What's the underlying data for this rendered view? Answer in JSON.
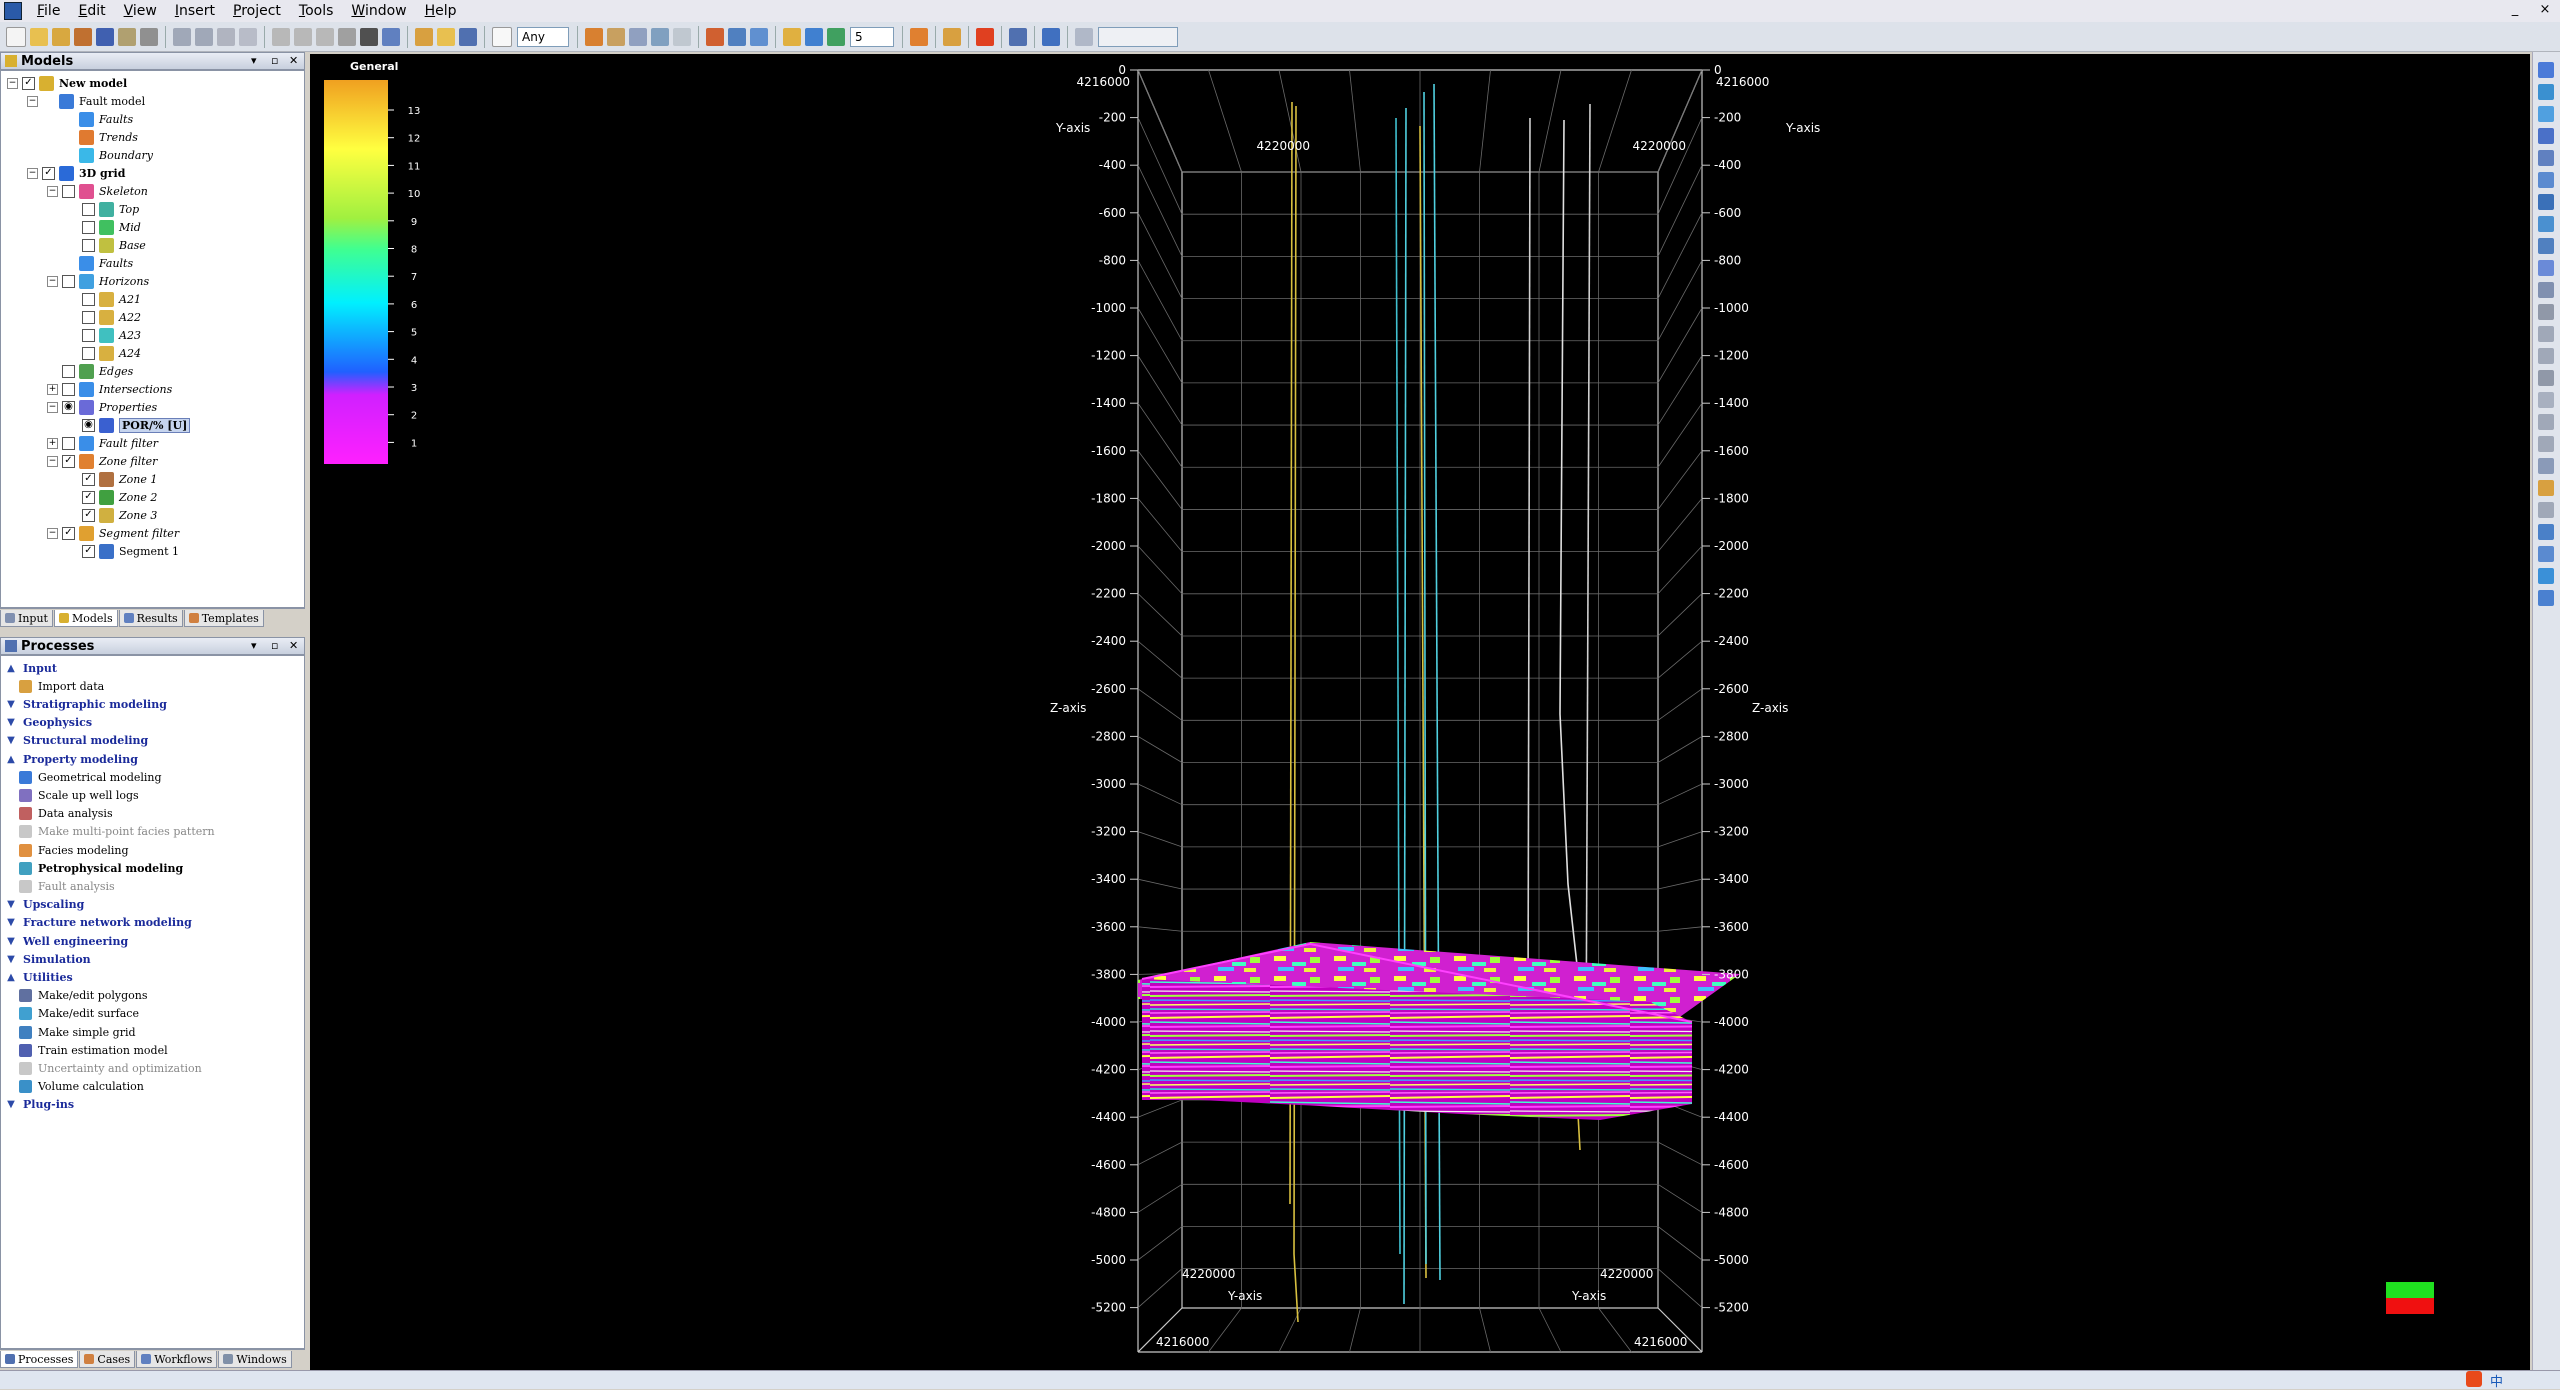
{
  "menu": [
    "File",
    "Edit",
    "View",
    "Insert",
    "Project",
    "Tools",
    "Window",
    "Help"
  ],
  "window_controls": [
    "_",
    "×"
  ],
  "toolbar": {
    "domain_select": "Any",
    "zoom_value": "5"
  },
  "models_panel": {
    "title": "Models",
    "tree": [
      {
        "label": "New model",
        "depth": 0,
        "exp": "−",
        "chk": "✓",
        "icon": "#d8b030",
        "style": "bold"
      },
      {
        "label": "Fault model",
        "depth": 1,
        "exp": "−",
        "chk": "",
        "icon": "#3a7ad8",
        "style": "plain"
      },
      {
        "label": "Faults",
        "depth": 2,
        "exp": "",
        "chk": "",
        "icon": "#3a8ee8",
        "style": "italic"
      },
      {
        "label": "Trends",
        "depth": 2,
        "exp": "",
        "chk": "",
        "icon": "#e07a30",
        "style": "italic"
      },
      {
        "label": "Boundary",
        "depth": 2,
        "exp": "",
        "chk": "",
        "icon": "#3ab8e8",
        "style": "italic"
      },
      {
        "label": "3D grid",
        "depth": 1,
        "exp": "−",
        "chk": "✓",
        "icon": "#2a6ad8",
        "style": "bold"
      },
      {
        "label": "Skeleton",
        "depth": 2,
        "exp": "−",
        "chk": "□",
        "icon": "#e05090",
        "style": "italic"
      },
      {
        "label": "Top",
        "depth": 3,
        "exp": "",
        "chk": "□",
        "icon": "#40b0a0",
        "style": "italic"
      },
      {
        "label": "Mid",
        "depth": 3,
        "exp": "",
        "chk": "□",
        "icon": "#40c060",
        "style": "italic"
      },
      {
        "label": "Base",
        "depth": 3,
        "exp": "",
        "chk": "□",
        "icon": "#c0c040",
        "style": "italic"
      },
      {
        "label": "Faults",
        "depth": 2,
        "exp": "",
        "chk": "",
        "icon": "#3a8ee8",
        "style": "italic"
      },
      {
        "label": "Horizons",
        "depth": 2,
        "exp": "−",
        "chk": "□",
        "icon": "#40a0e0",
        "style": "italic"
      },
      {
        "label": "A21",
        "depth": 3,
        "exp": "",
        "chk": "□",
        "icon": "#d8b040",
        "style": "italic"
      },
      {
        "label": "A22",
        "depth": 3,
        "exp": "",
        "chk": "□",
        "icon": "#d8b040",
        "style": "italic"
      },
      {
        "label": "A23",
        "depth": 3,
        "exp": "",
        "chk": "□",
        "icon": "#40c0c0",
        "style": "italic"
      },
      {
        "label": "A24",
        "depth": 3,
        "exp": "",
        "chk": "□",
        "icon": "#d8b040",
        "style": "italic"
      },
      {
        "label": "Edges",
        "depth": 2,
        "exp": "",
        "chk": "□",
        "icon": "#50a050",
        "style": "italic"
      },
      {
        "label": "Intersections",
        "depth": 2,
        "exp": "+",
        "chk": "□",
        "icon": "#3a8ee8",
        "style": "italic"
      },
      {
        "label": "Properties",
        "depth": 2,
        "exp": "−",
        "chk": "◉",
        "icon": "#6a6ad8",
        "style": "italic"
      },
      {
        "label": "POR/% [U]",
        "depth": 3,
        "exp": "",
        "chk": "◉",
        "icon": "#3a60d0",
        "style": "sel"
      },
      {
        "label": "Fault filter",
        "depth": 2,
        "exp": "+",
        "chk": "□",
        "icon": "#3a8ee8",
        "style": "italic"
      },
      {
        "label": "Zone filter",
        "depth": 2,
        "exp": "−",
        "chk": "✓",
        "icon": "#e08030",
        "style": "italic"
      },
      {
        "label": "Zone 1",
        "depth": 3,
        "exp": "",
        "chk": "✓",
        "icon": "#b07040",
        "style": "italic"
      },
      {
        "label": "Zone 2",
        "depth": 3,
        "exp": "",
        "chk": "✓",
        "icon": "#40a040",
        "style": "italic"
      },
      {
        "label": "Zone 3",
        "depth": 3,
        "exp": "",
        "chk": "✓",
        "icon": "#d0b040",
        "style": "italic"
      },
      {
        "label": "Segment filter",
        "depth": 2,
        "exp": "−",
        "chk": "✓",
        "icon": "#e0a030",
        "style": "italic"
      },
      {
        "label": "Segment 1",
        "depth": 3,
        "exp": "",
        "chk": "✓",
        "icon": "#3a70c8",
        "style": "plain"
      }
    ],
    "tabs": [
      "Input",
      "Models",
      "Results",
      "Templates"
    ]
  },
  "processes_panel": {
    "title": "Processes",
    "items": [
      {
        "label": "Input",
        "type": "group",
        "chev": "▲"
      },
      {
        "label": "Import data",
        "type": "item",
        "icon": "#d8a040"
      },
      {
        "label": "Stratigraphic modeling",
        "type": "group",
        "chev": "▼"
      },
      {
        "label": "Geophysics",
        "type": "group",
        "chev": "▼"
      },
      {
        "label": "Structural modeling",
        "type": "group",
        "chev": "▼"
      },
      {
        "label": "Property modeling",
        "type": "group",
        "chev": "▲"
      },
      {
        "label": "Geometrical modeling",
        "type": "item",
        "icon": "#3a7ad8"
      },
      {
        "label": "Scale up well logs",
        "type": "item",
        "icon": "#8070c0"
      },
      {
        "label": "Data analysis",
        "type": "item",
        "icon": "#c06060"
      },
      {
        "label": "Make multi-point facies pattern",
        "type": "item-disabled",
        "icon": "#c8c8c8"
      },
      {
        "label": "Facies modeling",
        "type": "item",
        "icon": "#e09040"
      },
      {
        "label": "Petrophysical modeling",
        "type": "item-bold",
        "icon": "#40a0c0"
      },
      {
        "label": "Fault analysis",
        "type": "item-disabled",
        "icon": "#c8c8c8"
      },
      {
        "label": "Upscaling",
        "type": "group",
        "chev": "▼"
      },
      {
        "label": "Fracture network modeling",
        "type": "group",
        "chev": "▼"
      },
      {
        "label": "Well engineering",
        "type": "group",
        "chev": "▼"
      },
      {
        "label": "Simulation",
        "type": "group",
        "chev": "▼"
      },
      {
        "label": "Utilities",
        "type": "group",
        "chev": "▲"
      },
      {
        "label": "Make/edit polygons",
        "type": "item",
        "icon": "#6070a0"
      },
      {
        "label": "Make/edit surface",
        "type": "item",
        "icon": "#40a0d0"
      },
      {
        "label": "Make simple grid",
        "type": "item",
        "icon": "#4080c0"
      },
      {
        "label": "Train estimation model",
        "type": "item",
        "icon": "#5060b0"
      },
      {
        "label": "Uncertainty and optimization",
        "type": "item-disabled",
        "icon": "#c8c8c8"
      },
      {
        "label": "Volume calculation",
        "type": "item",
        "icon": "#3a90c8"
      },
      {
        "label": "Plug-ins",
        "type": "group",
        "chev": "▼"
      }
    ],
    "tabs": [
      "Processes",
      "Cases",
      "Workflows",
      "Windows"
    ]
  },
  "colorbar": {
    "title": "General",
    "ticks": [
      "13",
      "12",
      "11",
      "10",
      "9",
      "8",
      "7",
      "6",
      "5",
      "4",
      "3",
      "2",
      "1"
    ]
  },
  "viewer3d": {
    "z_ticks": [
      "0",
      "-200",
      "-400",
      "-600",
      "-800",
      "-1000",
      "-1200",
      "-1400",
      "-1600",
      "-1800",
      "-2000",
      "-2200",
      "-2400",
      "-2600",
      "-2800",
      "-3000",
      "-3200",
      "-3400",
      "-3600",
      "-3800",
      "-4000",
      "-4200",
      "-4400",
      "-4600",
      "-4800",
      "-5000",
      "-5200"
    ],
    "axis_labels": {
      "z": "Z-axis",
      "y": "Y-axis"
    },
    "y_values": {
      "near": "4216000",
      "far": "4220000"
    }
  },
  "status": {
    "ime": "中"
  }
}
